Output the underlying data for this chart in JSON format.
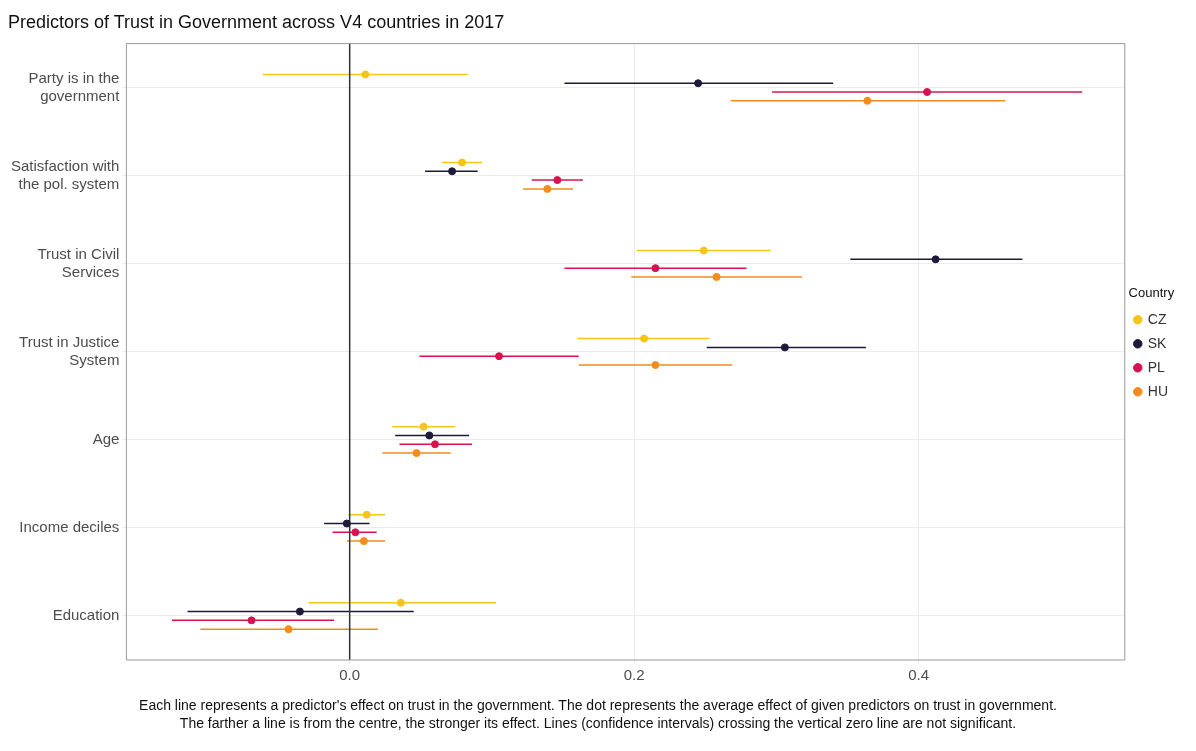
{
  "chart_data": {
    "type": "scatter",
    "orientation": "horizontal",
    "title": "Predictors of Trust in Government across V4 countries in 2017",
    "categories": [
      "Party is in the government",
      "Satisfaction with the pol. system",
      "Trust in Civil Services",
      "Trust in Justice System",
      "Age",
      "Income deciles",
      "Education"
    ],
    "series": [
      {
        "name": "CZ",
        "color": "#f5c518",
        "values": [
          0.011,
          0.079,
          0.249,
          0.207,
          0.052,
          0.012,
          0.036
        ],
        "errors": [
          [
            -0.061,
            0.083
          ],
          [
            0.065,
            0.093
          ],
          [
            0.202,
            0.296
          ],
          [
            0.16,
            0.253
          ],
          [
            0.03,
            0.074
          ],
          [
            -0.001,
            0.025
          ],
          [
            -0.029,
            0.103
          ]
        ]
      },
      {
        "name": "SK",
        "color": "#1f1a3a",
        "values": [
          0.245,
          0.072,
          0.412,
          0.306,
          0.056,
          -0.002,
          -0.035
        ],
        "errors": [
          [
            0.151,
            0.34
          ],
          [
            0.053,
            0.09
          ],
          [
            0.352,
            0.473
          ],
          [
            0.251,
            0.363
          ],
          [
            0.032,
            0.084
          ],
          [
            -0.018,
            0.014
          ],
          [
            -0.114,
            0.045
          ]
        ]
      },
      {
        "name": "PL",
        "color": "#d6134f",
        "values": [
          0.406,
          0.146,
          0.215,
          0.105,
          0.06,
          0.004,
          -0.069
        ],
        "errors": [
          [
            0.297,
            0.515
          ],
          [
            0.128,
            0.164
          ],
          [
            0.151,
            0.279
          ],
          [
            0.049,
            0.161
          ],
          [
            0.035,
            0.086
          ],
          [
            -0.012,
            0.019
          ],
          [
            -0.125,
            -0.011
          ]
        ]
      },
      {
        "name": "HU",
        "color": "#f58b1a",
        "values": [
          0.364,
          0.139,
          0.258,
          0.215,
          0.047,
          0.01,
          -0.043
        ],
        "errors": [
          [
            0.268,
            0.461
          ],
          [
            0.122,
            0.157
          ],
          [
            0.198,
            0.318
          ],
          [
            0.161,
            0.269
          ],
          [
            0.023,
            0.071
          ],
          [
            -0.002,
            0.025
          ],
          [
            -0.105,
            0.02
          ]
        ]
      }
    ],
    "xlim": [
      -0.157,
      0.545
    ],
    "xticks": [
      {
        "value": 0,
        "label": "0.0"
      },
      {
        "value": 0.2,
        "label": "0.2"
      },
      {
        "value": 0.4,
        "label": "0.4"
      }
    ],
    "ref_lines": [
      {
        "axis": "x",
        "value": 0,
        "color": "#333333"
      }
    ],
    "legend": "right",
    "legend_title": "Country",
    "grid": true,
    "marker": "circle",
    "annotations": [
      "Each line represents a predictor's effect on trust in the government. The dot represents the average effect of given predictors on trust in government.",
      "The farther a line is from the centre, the stronger its effect. Lines (confidence intervals) crossing the vertical zero line are not significant."
    ]
  }
}
